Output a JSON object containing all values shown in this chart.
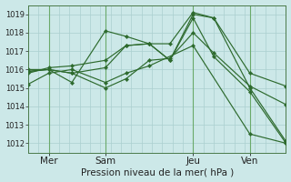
{
  "title": "Pression niveau de la mer( hPa )",
  "bg_color": "#cce8e8",
  "grid_color": "#aacfcf",
  "line_color": "#2d6a2d",
  "ylim": [
    1011.5,
    1019.5
  ],
  "yticks": [
    1012,
    1013,
    1014,
    1015,
    1016,
    1017,
    1018,
    1019
  ],
  "xtick_labels": [
    "Mer",
    "Sam",
    "Jeu",
    "Ven"
  ],
  "xtick_positions": [
    8,
    30,
    64,
    86
  ],
  "xlim": [
    0,
    100
  ],
  "lines": [
    {
      "x": [
        0,
        8,
        17,
        30,
        38,
        47,
        55,
        64,
        72,
        86,
        100
      ],
      "y": [
        1015.9,
        1016.0,
        1015.8,
        1016.1,
        1017.3,
        1017.4,
        1017.4,
        1019.1,
        1018.8,
        1015.0,
        1012.1
      ]
    },
    {
      "x": [
        0,
        8,
        17,
        30,
        38,
        47,
        55,
        64,
        72,
        86,
        100
      ],
      "y": [
        1016.0,
        1016.0,
        1015.3,
        1018.1,
        1017.8,
        1017.4,
        1016.5,
        1018.8,
        1016.7,
        1014.8,
        1012.0
      ]
    },
    {
      "x": [
        0,
        8,
        17,
        30,
        38,
        47,
        55,
        64,
        72,
        86,
        100
      ],
      "y": [
        1015.8,
        1016.1,
        1016.2,
        1016.5,
        1017.3,
        1017.4,
        1016.5,
        1019.0,
        1018.8,
        1015.8,
        1015.1
      ]
    },
    {
      "x": [
        0,
        8,
        17,
        30,
        38,
        47,
        55,
        64,
        72,
        86,
        100
      ],
      "y": [
        1015.9,
        1016.0,
        1015.8,
        1015.0,
        1015.5,
        1016.5,
        1016.6,
        1018.0,
        1016.9,
        1015.1,
        1014.1
      ]
    },
    {
      "x": [
        0,
        8,
        17,
        30,
        38,
        47,
        64,
        86,
        100
      ],
      "y": [
        1015.2,
        1015.8,
        1016.0,
        1015.3,
        1015.8,
        1016.2,
        1017.3,
        1012.5,
        1012.0
      ]
    }
  ],
  "vline_positions": [
    8,
    30,
    64,
    86
  ],
  "vline_color": "#6aaa6a",
  "xlabel_fontsize": 7.5,
  "tick_fontsize": 6,
  "figsize": [
    3.2,
    2.0
  ],
  "dpi": 100
}
